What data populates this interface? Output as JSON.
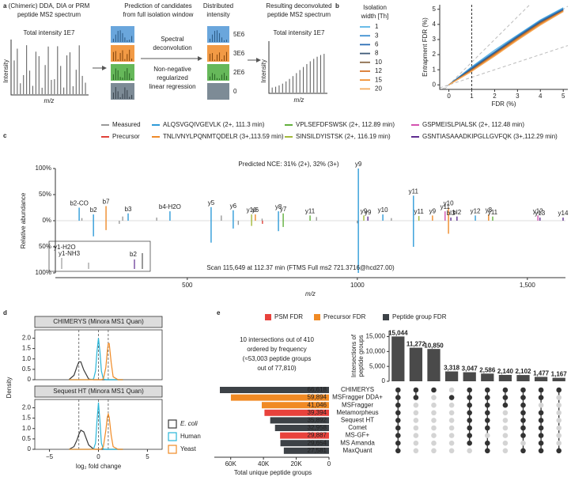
{
  "panel_labels": [
    "a",
    "b",
    "c",
    "d",
    "e"
  ],
  "workflow": {
    "input": {
      "title": [
        "(Chimeric) DDA, DIA or PRM",
        "peptide MS2 spectrum"
      ],
      "total": "Total intensity 1E7",
      "ylabel": "Intensity",
      "xlabel": "m/z"
    },
    "prediction": {
      "title": [
        "Prediction of candidates",
        "from full isolation window"
      ]
    },
    "method": {
      "step1": [
        "Spectral",
        "deconvolution"
      ],
      "step2": [
        "Non-negative",
        "regularized",
        "linear regression"
      ]
    },
    "distributed": {
      "title": [
        "Distributed",
        "intensity"
      ],
      "labels": [
        "5E6",
        "3E6",
        "2E6",
        "0"
      ]
    },
    "output": {
      "title": [
        "Resulting deconvoluted",
        "peptide MS2 spectrum"
      ],
      "total": "Total intensity 1E7",
      "ylabel": "Intensity",
      "xlabel": "m/z"
    }
  },
  "chart_data": [
    {
      "type": "line",
      "legend_title": [
        "Isolation",
        "width [Th]"
      ],
      "xlabel": "FDR (%)",
      "ylabel": "Entrapment FDR (%)",
      "x": [
        0,
        1,
        2,
        3,
        4,
        5
      ],
      "xlim": [
        -0.4,
        5.2
      ],
      "ylim": [
        -0.3,
        5.3
      ],
      "xticks": [
        0,
        1,
        2,
        3,
        4,
        5
      ],
      "yticks": [
        0,
        1,
        2,
        3,
        4,
        5
      ],
      "vline": 1,
      "reference_slopes": [
        0.5,
        1,
        1.5
      ],
      "series": [
        {
          "name": "1",
          "color": "#5ab4e5",
          "values": [
            0,
            1.2,
            2.3,
            3.3,
            4.3,
            5.1
          ]
        },
        {
          "name": "3",
          "color": "#3d8fd1",
          "values": [
            0,
            1.15,
            2.2,
            3.25,
            4.25,
            5.05
          ]
        },
        {
          "name": "6",
          "color": "#2a6db5",
          "values": [
            0,
            1.1,
            2.15,
            3.2,
            4.2,
            5.0
          ]
        },
        {
          "name": "8",
          "color": "#3f5a78",
          "values": [
            0,
            1.05,
            2.1,
            3.15,
            4.15,
            4.95
          ]
        },
        {
          "name": "10",
          "color": "#8a6a4a",
          "values": [
            0,
            1.0,
            2.05,
            3.1,
            4.1,
            4.9
          ]
        },
        {
          "name": "12",
          "color": "#d9772b",
          "values": [
            0,
            0.95,
            2.0,
            3.05,
            4.05,
            4.9
          ]
        },
        {
          "name": "15",
          "color": "#f08c2c",
          "values": [
            0,
            0.9,
            1.95,
            3.0,
            4.0,
            4.85
          ]
        },
        {
          "name": "20",
          "color": "#f5ab5c",
          "values": [
            0,
            0.9,
            1.9,
            2.95,
            3.95,
            4.85
          ]
        }
      ]
    },
    {
      "type": "spectrum",
      "xlabel": "m/z",
      "ylabel": "Relative abundance",
      "annotations": [
        "Predicted NCE: 31% (2+), 32% (3+)",
        "Scan 115,649 at 112.37 min (FTMS Full ms2 721.3716@hcd27.00)"
      ],
      "inset_labels": [
        "y1-H2O",
        "y1-NH3",
        "b2"
      ],
      "xlim": [
        112,
        1612
      ],
      "ylim": [
        -100,
        100
      ],
      "xticks": [
        500,
        1000,
        {
          "value": 1500,
          "label": "1,500"
        }
      ],
      "yticks": [
        {
          "value": 100,
          "label": "100%"
        },
        {
          "value": 50,
          "label": "50%"
        },
        {
          "value": 0,
          "label": "0%"
        },
        {
          "value": -50,
          "label": "50%"
        },
        {
          "value": -100,
          "label": "100%"
        }
      ],
      "series": [
        {
          "name": "Measured",
          "color": "#9a9a9a",
          "x": [
            190,
            310,
            410,
            600,
            720,
            880,
            1100,
            300,
            650,
            1000
          ],
          "values": [
            5,
            8,
            6,
            10,
            4,
            7,
            5,
            -6,
            -8,
            -5
          ]
        },
        {
          "name": "Precursor",
          "color": "#e0413a",
          "x": [
            721
          ],
          "values": [
            -6
          ]
        },
        {
          "name": "ALQSVGQIVGEVLK (2+, 111.3 min)",
          "color": "#2f9bd8",
          "x": [
            182,
            224,
            326,
            449,
            570,
            635,
            768,
            1003,
            1075,
            1165,
            1347,
            1003,
            1165,
            570,
            224,
            768,
            635
          ],
          "values": [
            25,
            12,
            14,
            18,
            26,
            20,
            18,
            100,
            12,
            48,
            10,
            -100,
            -50,
            -42,
            -30,
            -20,
            -15
          ],
          "labels": [
            "b2-CO",
            "b2",
            "b3",
            "b4-H2O",
            "y5",
            "y6",
            "y8",
            "y9",
            "y10",
            "y11",
            "y12",
            null,
            null,
            null,
            null,
            null,
            null
          ]
        },
        {
          "name": "TNLIVNYLPQNMTQDELR (3+,113.59 min)",
          "color": "#ef8a2a",
          "x": [
            261,
            700,
            1221,
            1268,
            1386,
            1268,
            261
          ],
          "values": [
            28,
            12,
            10,
            25,
            12,
            -25,
            -18
          ],
          "labels": [
            "b7",
            "y6",
            "y9",
            "y10",
            "y8",
            null,
            null
          ]
        },
        {
          "name": "VPLSEFDFSWSK (2+, 112.89 min)",
          "color": "#62b03d",
          "x": [
            782,
            861,
            1398,
            782
          ],
          "values": [
            14,
            10,
            8,
            -12
          ],
          "labels": [
            "y7",
            "y11",
            "y11",
            null
          ]
        },
        {
          "name": "SINSILDYISTSK (2+, 116.19 min)",
          "color": "#a3b93a",
          "x": [
            689,
            1019,
            1181,
            689
          ],
          "values": [
            12,
            10,
            9,
            -10
          ],
          "labels": [
            "y10",
            "y9",
            "y11",
            null
          ]
        },
        {
          "name": "GSPMEISLPIALSK (2+, 112.48 min)",
          "color": "#d452b0",
          "x": [
            1258,
            1531
          ],
          "values": [
            18,
            10
          ],
          "labels": [
            "y11",
            "y12"
          ]
        },
        {
          "name": "GSNTIASAAADKIPGLLGVFQK (3+,112.29 min)",
          "color": "#5e2c8f",
          "x": [
            1031,
            1275,
            1293,
            1537,
            1605
          ],
          "values": [
            8,
            6,
            8,
            6,
            6
          ],
          "labels": [
            "y9",
            "bl3",
            "bl2",
            "y13",
            "y14"
          ]
        }
      ]
    },
    {
      "type": "density",
      "title": "CHIMERYS (Minora MS1 Quan)",
      "ylabel": "Density",
      "x": [
        -3,
        -2.5,
        -2.2,
        -2,
        -1.8,
        -1.5,
        -1,
        -0.5,
        -0.3,
        -0.15,
        0,
        0.15,
        0.3,
        0.5,
        0.75,
        0.9,
        1,
        1.1,
        1.3,
        1.5,
        2,
        2.5
      ],
      "xlim": [
        -6.5,
        6.5
      ],
      "ylim": [
        0,
        2.4
      ],
      "yticks": [
        0,
        0.5,
        {
          "value": 1,
          "label": "1.0"
        },
        1.5,
        {
          "value": 2,
          "label": "2.0"
        }
      ],
      "reference_x": [
        -2,
        0,
        1
      ],
      "series": [
        {
          "name": "E. coli",
          "color": "#3a3a3a",
          "values": [
            0.01,
            0.21,
            0.62,
            0.86,
            0.86,
            0.47,
            0.03,
            0,
            0,
            0,
            0,
            0,
            0,
            0,
            0,
            0,
            0,
            0,
            0,
            0,
            0,
            0
          ]
        },
        {
          "name": "Human",
          "color": "#29b6d8",
          "values": [
            0,
            0,
            0,
            0,
            0,
            0,
            0,
            0.03,
            0.42,
            1.35,
            2.0,
            1.35,
            0.42,
            0.03,
            0,
            0,
            0,
            0,
            0,
            0,
            0,
            0
          ]
        },
        {
          "name": "Yeast",
          "color": "#f08a24",
          "values": [
            0,
            0,
            0,
            0,
            0,
            0,
            0,
            0,
            0,
            0,
            0,
            0,
            0,
            0.04,
            0.58,
            1.36,
            1.74,
            1.74,
            0.82,
            0.14,
            0,
            0
          ]
        }
      ]
    },
    {
      "type": "density",
      "title": "Sequest HT (Minora MS1 Quan)",
      "xlabel": "log₂ fold change",
      "x": [
        -3,
        -2.5,
        -2.2,
        -2,
        -1.8,
        -1.5,
        -1,
        -0.5,
        -0.3,
        -0.15,
        0,
        0.15,
        0.3,
        0.5,
        0.75,
        0.9,
        1,
        1.1,
        1.3,
        1.5,
        2,
        2.5
      ],
      "xlim": [
        -6.5,
        6.5
      ],
      "ylim": [
        0,
        2.4
      ],
      "xticks": [
        {
          "value": -5,
          "label": "−5"
        },
        0,
        5
      ],
      "yticks": [
        0,
        0.5,
        {
          "value": 1,
          "label": "1.0"
        },
        1.5,
        {
          "value": 2,
          "label": "2.0"
        }
      ],
      "reference_x": [
        -2,
        0,
        1
      ],
      "series": [
        {
          "color": "#3a3a3a",
          "values": [
            0,
            0.13,
            0.44,
            0.72,
            0.92,
            0.84,
            0.21,
            0.01,
            0,
            0,
            0,
            0,
            0,
            0,
            0,
            0,
            0,
            0,
            0,
            0,
            0,
            0
          ]
        },
        {
          "color": "#29b6d8",
          "values": [
            0,
            0,
            0,
            0,
            0,
            0,
            0,
            0.01,
            0.3,
            1.37,
            2.25,
            1.37,
            0.3,
            0.01,
            0,
            0,
            0,
            0,
            0,
            0,
            0,
            0
          ]
        },
        {
          "color": "#f08a24",
          "values": [
            0,
            0,
            0,
            0,
            0,
            0,
            0,
            0,
            0,
            0,
            0,
            0,
            0.01,
            0.13,
            0.9,
            1.54,
            1.7,
            1.54,
            0.67,
            0.13,
            0,
            0
          ]
        }
      ]
    },
    {
      "type": "bar",
      "orientation": "horizontal",
      "xlabel": "Total unique peptide groups",
      "note": [
        "10 intersections out of 410",
        "ordered by frequency",
        "(≈53,003 peptide groups",
        "out of 77,810)"
      ],
      "legend": [
        {
          "name": "PSM FDR",
          "color": "#e8423c"
        },
        {
          "name": "Precursor FDR",
          "color": "#f08a24"
        },
        {
          "name": "Peptide group FDR",
          "color": "#3d4247"
        }
      ],
      "categories": [
        "CHIMERYS",
        "MSFragger DDA+",
        "MSFragger",
        "Metamorpheus",
        "Sequest HT",
        "Comet",
        "MS-GF+",
        "MS Amanda",
        "MaxQuant"
      ],
      "values": [
        66618,
        59894,
        41046,
        39394,
        35892,
        32958,
        29887,
        29654,
        27581
      ],
      "value_labels": [
        "66,618",
        "59,894",
        "41,046",
        "39,394",
        "35,892",
        "32,958",
        "29,887",
        "29,654",
        "27,581"
      ],
      "colors": [
        "#3d4247",
        "#f08a24",
        "#f08a24",
        "#e8423c",
        "#3d4247",
        "#3d4247",
        "#e8423c",
        "#3d4247",
        "#3d4247"
      ],
      "xlim": [
        0,
        70000
      ],
      "xticks": [
        {
          "value": 60000,
          "label": "60K"
        },
        {
          "value": 40000,
          "label": "40K"
        },
        {
          "value": 20000,
          "label": "20K"
        },
        0
      ]
    },
    {
      "type": "upset",
      "ylabel": [
        "Intersections of",
        "peptide groups"
      ],
      "values": [
        15044,
        11272,
        10850,
        3318,
        3047,
        2586,
        2140,
        2102,
        1477,
        1167
      ],
      "value_labels": [
        "15,044",
        "11,272",
        "10,850",
        "3,318",
        "3,047",
        "2,586",
        "2,140",
        "2,102",
        "1,477",
        "1,167"
      ],
      "color": "#4a4a4a",
      "ylim": [
        0,
        17000
      ],
      "yticks": [
        0,
        {
          "value": 5000,
          "label": "5,000"
        },
        {
          "value": 10000,
          "label": "10,000"
        },
        {
          "value": 15000,
          "label": "15,000"
        }
      ],
      "sets": [
        [
          1,
          1,
          1,
          1,
          1,
          1,
          1,
          1,
          1
        ],
        [
          1,
          1,
          0,
          0,
          0,
          0,
          0,
          0,
          0
        ],
        [
          1,
          0,
          0,
          0,
          0,
          0,
          0,
          0,
          0
        ],
        [
          0,
          1,
          0,
          0,
          0,
          0,
          0,
          0,
          0
        ],
        [
          1,
          1,
          1,
          1,
          1,
          1,
          1,
          1,
          0
        ],
        [
          1,
          1,
          1,
          1,
          1,
          1,
          0,
          1,
          1
        ],
        [
          1,
          1,
          1,
          0,
          0,
          0,
          0,
          0,
          0
        ],
        [
          1,
          1,
          1,
          1,
          1,
          1,
          1,
          0,
          1
        ],
        [
          1,
          1,
          0,
          1,
          1,
          1,
          1,
          1,
          1
        ],
        [
          1,
          0,
          0,
          0,
          0,
          0,
          0,
          0,
          1
        ]
      ]
    }
  ]
}
